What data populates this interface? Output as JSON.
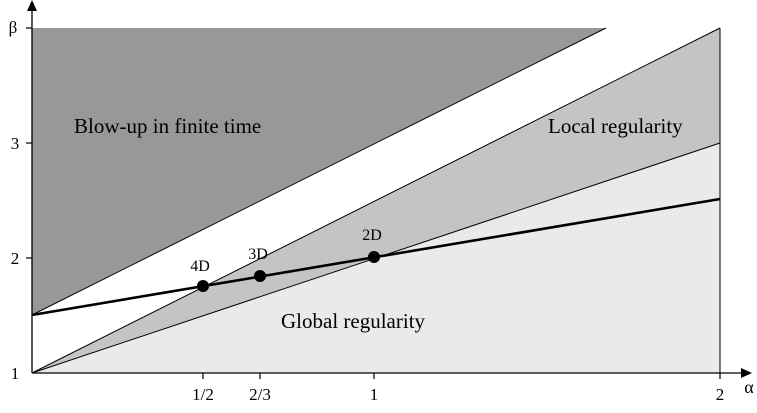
{
  "axes": {
    "x_name": "α",
    "y_name": "β",
    "x_ticks": [
      {
        "value": 0.5,
        "label": "1/2"
      },
      {
        "value": 0.6667,
        "label": "2/3"
      },
      {
        "value": 1,
        "label": "1"
      },
      {
        "value": 2,
        "label": "2"
      }
    ],
    "y_ticks": [
      {
        "value": 1,
        "label": "1"
      },
      {
        "value": 2,
        "label": "2"
      },
      {
        "value": 3,
        "label": "3"
      },
      {
        "value": 4,
        "label": "β"
      }
    ]
  },
  "regions": {
    "blowup": "Blow-up in finite time",
    "local": "Local regularity",
    "global": "Global regularity"
  },
  "points": [
    {
      "label": "4D",
      "alpha": 0.5,
      "beta": 1.75
    },
    {
      "label": "3D",
      "alpha": 0.6667,
      "beta": 1.8333
    },
    {
      "label": "2D",
      "alpha": 1,
      "beta": 2
    }
  ],
  "colors": {
    "blowup": "#9a9896",
    "local": "#c6c4c2",
    "global": "#ebeae9",
    "line": "#000000"
  }
}
